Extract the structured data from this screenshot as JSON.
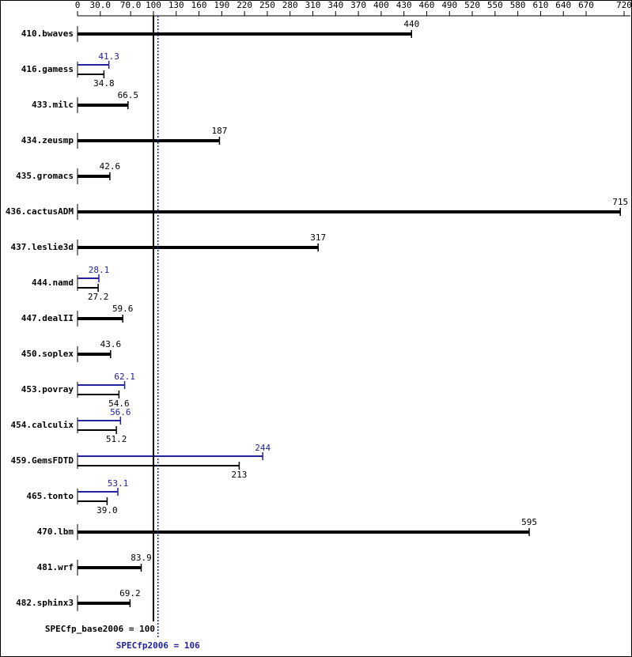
{
  "chart_data": {
    "type": "bar",
    "categories": [
      "410.bwaves",
      "416.gamess",
      "433.milc",
      "434.zeusmp",
      "435.gromacs",
      "436.cactusADM",
      "437.leslie3d",
      "444.namd",
      "447.dealII",
      "450.soplex",
      "453.povray",
      "454.calculix",
      "459.GemsFDTD",
      "465.tonto",
      "470.lbm",
      "481.wrf",
      "482.sphinx3"
    ],
    "series": [
      {
        "color": "#000000",
        "values": [
          440,
          34.8,
          66.5,
          187,
          42.6,
          715,
          317,
          27.2,
          59.6,
          43.6,
          54.6,
          51.2,
          213,
          39.0,
          595,
          83.9,
          69.2
        ],
        "value_labels": [
          "440",
          "34.8",
          "66.5",
          "187",
          "42.6",
          "715",
          "317",
          "27.2",
          "59.6",
          "43.6",
          "54.6",
          "51.2",
          "213",
          "39.0",
          "595",
          "83.9",
          "69.2"
        ]
      },
      {
        "color": "#22229a",
        "values": [
          null,
          41.3,
          null,
          null,
          null,
          null,
          null,
          28.1,
          null,
          null,
          62.1,
          56.6,
          244,
          53.1,
          null,
          null,
          null
        ],
        "value_labels": [
          null,
          "41.3",
          null,
          null,
          null,
          null,
          null,
          "28.1",
          null,
          null,
          "62.1",
          "56.6",
          "244",
          "53.1",
          null,
          null,
          null
        ]
      }
    ],
    "xlim": [
      0,
      720
    ],
    "xticks": [
      0,
      {
        "value": 30,
        "label": "30.0"
      },
      {
        "value": 70,
        "label": "70.0"
      },
      100,
      130,
      160,
      190,
      220,
      250,
      280,
      310,
      340,
      370,
      400,
      430,
      460,
      490,
      520,
      550,
      580,
      610,
      640,
      670,
      720
    ],
    "reference_lines": [
      {
        "label": "SPECfp_base2006 = 100",
        "value": 100,
        "color": "#000000"
      },
      {
        "label": "SPECfp2006 = 106",
        "value": 106,
        "color": "#22229a"
      }
    ]
  }
}
